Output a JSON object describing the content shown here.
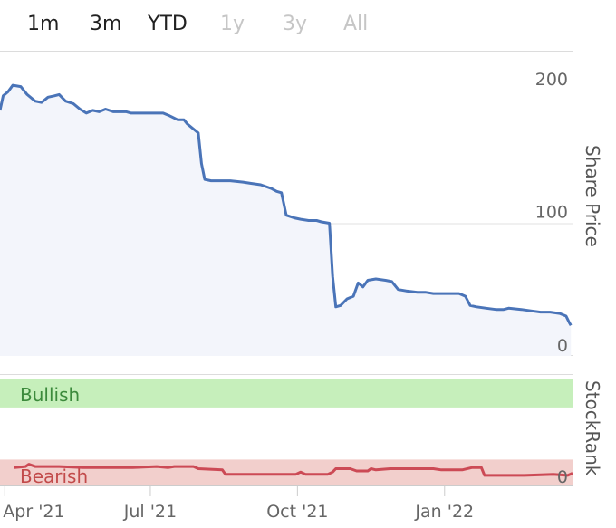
{
  "range_tabs": [
    {
      "label": "1m",
      "state": "active"
    },
    {
      "label": "3m",
      "state": "active"
    },
    {
      "label": "YTD",
      "state": "active"
    },
    {
      "label": "1y",
      "state": "disabled"
    },
    {
      "label": "3y",
      "state": "disabled"
    },
    {
      "label": "All",
      "state": "disabled"
    }
  ],
  "colors": {
    "price_line": "#4a74b8",
    "price_fill": "#f3f5fb",
    "rank_line": "#cc4a55",
    "bullish_band": "#c6efbb",
    "bearish_band": "#f2cfcc",
    "bullish_text": "#3c8a3c",
    "bearish_text": "#c24a4a"
  },
  "chart_data": [
    {
      "type": "line",
      "title": "",
      "ylabel": "Share Price",
      "ylim": [
        0,
        230
      ],
      "yticks": [
        "0",
        "100",
        "200"
      ],
      "xticks": [
        "Apr '21",
        "Jul '21",
        "Oct '21",
        "Jan '22"
      ],
      "x_domain": [
        "2021-03-29",
        "2022-03-22"
      ],
      "series": [
        {
          "points": [
            [
              "2021-03-29",
              185
            ],
            [
              "2021-03-31",
              196
            ],
            [
              "2021-04-03",
              199
            ],
            [
              "2021-04-06",
              204
            ],
            [
              "2021-04-11",
              203
            ],
            [
              "2021-04-15",
              197
            ],
            [
              "2021-04-20",
              192
            ],
            [
              "2021-04-24",
              191
            ],
            [
              "2021-04-28",
              195
            ],
            [
              "2021-05-02",
              196
            ],
            [
              "2021-05-05",
              197
            ],
            [
              "2021-05-09",
              192
            ],
            [
              "2021-05-14",
              190
            ],
            [
              "2021-05-18",
              186
            ],
            [
              "2021-05-22",
              183
            ],
            [
              "2021-05-26",
              185
            ],
            [
              "2021-05-30",
              184
            ],
            [
              "2021-06-03",
              186
            ],
            [
              "2021-06-08",
              184
            ],
            [
              "2021-06-16",
              184
            ],
            [
              "2021-06-19",
              183
            ],
            [
              "2021-06-24",
              183
            ],
            [
              "2021-07-02",
              183
            ],
            [
              "2021-07-09",
              183
            ],
            [
              "2021-07-13",
              181
            ],
            [
              "2021-07-18",
              178
            ],
            [
              "2021-07-22",
              178
            ],
            [
              "2021-07-24",
              175
            ],
            [
              "2021-07-27",
              172
            ],
            [
              "2021-07-31",
              168
            ],
            [
              "2021-08-02",
              145
            ],
            [
              "2021-08-04",
              133
            ],
            [
              "2021-08-08",
              132
            ],
            [
              "2021-08-15",
              132
            ],
            [
              "2021-08-20",
              132
            ],
            [
              "2021-08-28",
              131
            ],
            [
              "2021-09-02",
              130
            ],
            [
              "2021-09-08",
              129
            ],
            [
              "2021-09-15",
              126
            ],
            [
              "2021-09-18",
              124
            ],
            [
              "2021-09-21",
              123
            ],
            [
              "2021-09-24",
              106
            ],
            [
              "2021-09-29",
              104
            ],
            [
              "2021-10-03",
              103
            ],
            [
              "2021-10-08",
              102
            ],
            [
              "2021-10-13",
              102
            ],
            [
              "2021-10-16",
              101
            ],
            [
              "2021-10-21",
              100
            ],
            [
              "2021-10-23",
              60
            ],
            [
              "2021-10-25",
              37
            ],
            [
              "2021-10-28",
              38
            ],
            [
              "2021-11-01",
              43
            ],
            [
              "2021-11-05",
              45
            ],
            [
              "2021-11-08",
              55
            ],
            [
              "2021-11-11",
              52
            ],
            [
              "2021-11-14",
              57
            ],
            [
              "2021-11-19",
              58
            ],
            [
              "2021-11-25",
              57
            ],
            [
              "2021-11-29",
              56
            ],
            [
              "2021-12-03",
              50
            ],
            [
              "2021-12-08",
              49
            ],
            [
              "2021-12-15",
              48
            ],
            [
              "2021-12-20",
              48
            ],
            [
              "2021-12-25",
              47
            ],
            [
              "2021-12-30",
              47
            ],
            [
              "2022-01-05",
              47
            ],
            [
              "2022-01-10",
              47
            ],
            [
              "2022-01-14",
              45
            ],
            [
              "2022-01-17",
              38
            ],
            [
              "2022-01-21",
              37
            ],
            [
              "2022-01-27",
              36
            ],
            [
              "2022-02-02",
              35
            ],
            [
              "2022-02-07",
              35
            ],
            [
              "2022-02-10",
              36
            ],
            [
              "2022-02-18",
              35
            ],
            [
              "2022-02-24",
              34
            ],
            [
              "2022-03-02",
              33
            ],
            [
              "2022-03-08",
              33
            ],
            [
              "2022-03-14",
              32
            ],
            [
              "2022-03-18",
              30
            ],
            [
              "2022-03-20",
              25
            ],
            [
              "2022-03-21",
              23
            ]
          ]
        }
      ]
    },
    {
      "type": "line",
      "title": "",
      "ylabel": "StockRank",
      "ylim": [
        0,
        100
      ],
      "yticks": [
        "0"
      ],
      "bands": [
        {
          "label": "Bullish",
          "from": 70,
          "to": 100
        },
        {
          "label": "Bearish",
          "from": 0,
          "to": 20
        }
      ],
      "xticks": [
        "Apr '21",
        "Jul '21",
        "Oct '21",
        "Jan '22"
      ],
      "x_domain": [
        "2021-03-29",
        "2022-03-22"
      ],
      "series": [
        {
          "points": [
            [
              "2021-04-07",
              16
            ],
            [
              "2021-04-14",
              17
            ],
            [
              "2021-04-16",
              19
            ],
            [
              "2021-04-20",
              17
            ],
            [
              "2021-05-05",
              17
            ],
            [
              "2021-05-20",
              16
            ],
            [
              "2021-06-10",
              16
            ],
            [
              "2021-06-20",
              16
            ],
            [
              "2021-07-05",
              17
            ],
            [
              "2021-07-12",
              16
            ],
            [
              "2021-07-16",
              17
            ],
            [
              "2021-07-28",
              17
            ],
            [
              "2021-07-31",
              15
            ],
            [
              "2021-08-15",
              14
            ],
            [
              "2021-08-17",
              10
            ],
            [
              "2021-08-30",
              10
            ],
            [
              "2021-09-15",
              10
            ],
            [
              "2021-09-30",
              10
            ],
            [
              "2021-10-03",
              12
            ],
            [
              "2021-10-06",
              10
            ],
            [
              "2021-10-10",
              10
            ],
            [
              "2021-10-17",
              10
            ],
            [
              "2021-10-20",
              10
            ],
            [
              "2021-10-23",
              12
            ],
            [
              "2021-10-25",
              15
            ],
            [
              "2021-11-03",
              15
            ],
            [
              "2021-11-07",
              13
            ],
            [
              "2021-11-14",
              13
            ],
            [
              "2021-11-16",
              15
            ],
            [
              "2021-11-19",
              14
            ],
            [
              "2021-11-28",
              15
            ],
            [
              "2021-12-05",
              15
            ],
            [
              "2021-12-25",
              15
            ],
            [
              "2021-12-30",
              14
            ],
            [
              "2022-01-12",
              14
            ],
            [
              "2022-01-18",
              16
            ],
            [
              "2022-01-24",
              16
            ],
            [
              "2022-01-26",
              9
            ],
            [
              "2022-02-10",
              9
            ],
            [
              "2022-02-20",
              9
            ],
            [
              "2022-03-10",
              10
            ],
            [
              "2022-03-19",
              9
            ],
            [
              "2022-03-22",
              11
            ]
          ]
        }
      ]
    }
  ]
}
